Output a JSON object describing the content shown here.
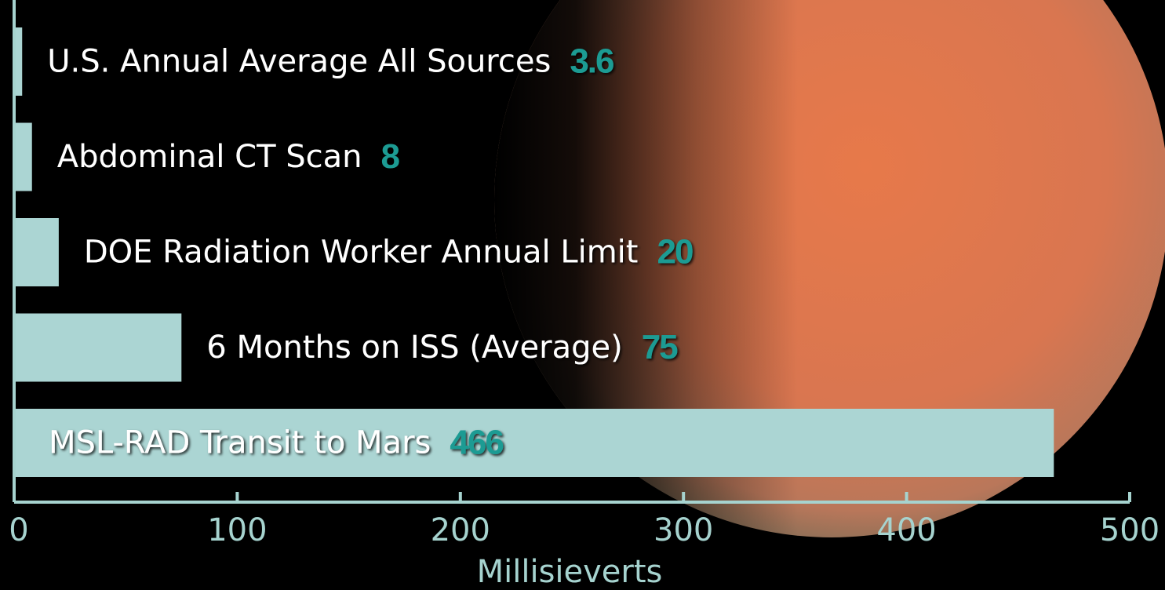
{
  "chart_data": {
    "type": "barh",
    "categories": [
      "U.S. Annual Average All Sources",
      "Abdominal CT Scan",
      "DOE Radiation Worker Annual Limit",
      "6 Months on ISS (Average)",
      "MSL-RAD Transit to Mars"
    ],
    "values": [
      3.6,
      8,
      20,
      75,
      466
    ],
    "color": "#abd5d3",
    "xlabel": "Millisieverts",
    "xlim": [
      0,
      500
    ],
    "xticks": [
      0,
      100,
      200,
      300,
      400,
      500
    ]
  }
}
